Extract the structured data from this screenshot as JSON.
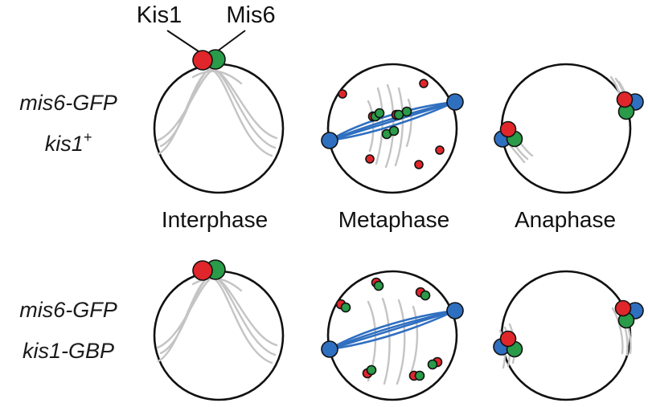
{
  "legend": {
    "kis1_label": "Kis1",
    "mis6_label": "Mis6"
  },
  "rows": [
    {
      "strain_line1": "mis6-GFP",
      "strain_line2_base": "kis1",
      "strain_line2_sup": "+"
    },
    {
      "strain_line1": "mis6-GFP",
      "strain_line2_base": "kis1-GBP",
      "strain_line2_sup": ""
    }
  ],
  "phases": [
    "Interphase",
    "Metaphase",
    "Anaphase"
  ],
  "colors": {
    "kis1": "#e0262b",
    "mis6": "#2a9b48",
    "spb": "#2f6fc0",
    "microtubule": "#c4c4c4",
    "outline": "#111111"
  },
  "icons": [
    "kis1-dot-icon",
    "mis6-dot-icon",
    "spb-dot-icon"
  ]
}
